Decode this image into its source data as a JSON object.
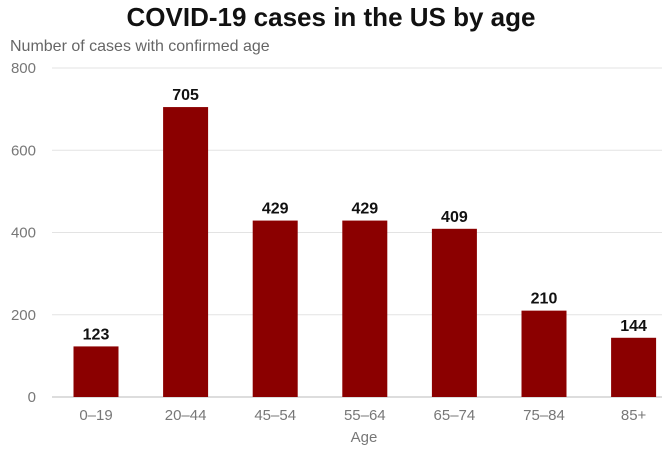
{
  "chart_data": {
    "type": "bar",
    "title": "COVID-19 cases in the US by age",
    "subtitle": "Number of cases with confirmed age",
    "xlabel": "Age",
    "ylabel": "",
    "categories": [
      "0–19",
      "20–44",
      "45–54",
      "55–64",
      "65–74",
      "75–84",
      "85+"
    ],
    "values": [
      123,
      705,
      429,
      429,
      409,
      210,
      144
    ],
    "ylim": [
      0,
      800
    ],
    "yticks": [
      0,
      200,
      400,
      600,
      800
    ],
    "grid": true,
    "bar_color": "#8b0000",
    "legend": "none"
  }
}
